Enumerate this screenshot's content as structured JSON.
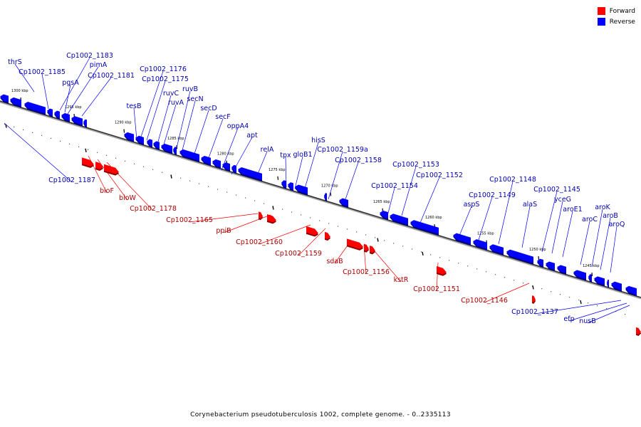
{
  "legend": {
    "forward_label": "Forward",
    "reverse_label": "Reverse",
    "forward_color": "#ff0000",
    "reverse_color": "#0000ff"
  },
  "caption": "Corynebacterium pseudotuberculosis 1002, complete genome. - 0..2335113",
  "scale_ticks": [
    "1300 kbp",
    "1295 kbp",
    "1290 kbp",
    "1285 kbp",
    "1280 kbp",
    "1275 kbp",
    "1270 kbp",
    "1265 kbp",
    "1260 kbp",
    "1255 kbp",
    "1250 kbp",
    "1245 kbp"
  ],
  "reverse_genes": [
    "thrS",
    "Cp1002_1185",
    "Cp1002_1183",
    "pimA",
    "pgsA",
    "Cp1002_1181",
    "tesB",
    "Cp1002_1176",
    "Cp1002_1175",
    "ruvC",
    "ruvA",
    "ruvB",
    "secN",
    "secD",
    "secF",
    "oppA4",
    "apt",
    "relA",
    "tpx",
    "gloB1",
    "hisS",
    "Cp1002_1159a",
    "Cp1002_1158",
    "Cp1002_1154",
    "Cp1002_1153",
    "Cp1002_1152",
    "aspS",
    "Cp1002_1149",
    "Cp1002_1148",
    "alaS",
    "Cp1002_1145",
    "yceG",
    "aroE1",
    "aroC",
    "aroK",
    "aroB",
    "aroQ",
    "Cp1002_1187",
    "Cp1002_1137",
    "efp",
    "nusB"
  ],
  "forward_genes": [
    "bioF",
    "bioW",
    "Cp1002_1178",
    "Cp1002_1165",
    "ppiB",
    "Cp1002_1160",
    "Cp1002_1159",
    "sdaB",
    "Cp1002_1156",
    "kstR",
    "Cp1002_1151",
    "Cp1002_1146"
  ]
}
